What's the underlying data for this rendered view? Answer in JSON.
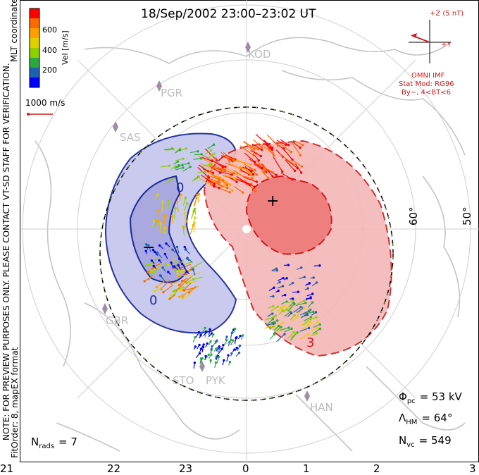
{
  "title": "18/Sep/2002 23:00–23:02 UT",
  "colorbar": {
    "ticks": [
      "600",
      "400",
      "200"
    ],
    "unit_label": "Vel [m/s]",
    "coord_label": "MLT coordinates",
    "colors": [
      "#ff0000",
      "#ff6a00",
      "#ffa000",
      "#e0d000",
      "#8fd000",
      "#2ca840",
      "#2060b0",
      "#0000ff"
    ]
  },
  "ref_vector_label": "1000 m/s",
  "side_note": "NOTE: FOR PREVIEW PURPOSES ONLY. PLEASE CONTACT VT-SD STAFF FOR VERIFICATION.",
  "fit_note": "FitOrder: 8, mapEX format",
  "imf": {
    "z_label": "+Z (5 nT)",
    "y_label": "+Y",
    "source": "OMNI IMF",
    "stat_mod": "Stat Mod: RG96",
    "condition": "By−, 4<BT<6"
  },
  "stations": [
    "KOD",
    "PGR",
    "SAS",
    "GBR",
    "STO",
    "PYK",
    "HAN"
  ],
  "lat_labels": [
    "60°",
    "50°"
  ],
  "mlt_ticks": [
    "21",
    "22",
    "23",
    "0",
    "1",
    "2",
    "3"
  ],
  "contour_labels": [
    "0",
    "−",
    "0",
    "+",
    "3"
  ],
  "stats": {
    "phi_label": "Φ",
    "phi_sub": "pc",
    "phi_value": "= 53 kV",
    "lambda_label": "Λ",
    "lambda_sub": "HM",
    "lambda_value": "= 64°",
    "nvc_label": "N",
    "nvc_sub": "vc",
    "nvc_value": "= 549",
    "nrads_label": "N",
    "nrads_sub": "rads",
    "nrads_value": "= 7"
  },
  "colors": {
    "negative_cell": "#c8c8ee",
    "positive_cell": "#f4b8b8",
    "neg_contour": "#1a2a9a",
    "pos_contour": "#d01a1a"
  }
}
